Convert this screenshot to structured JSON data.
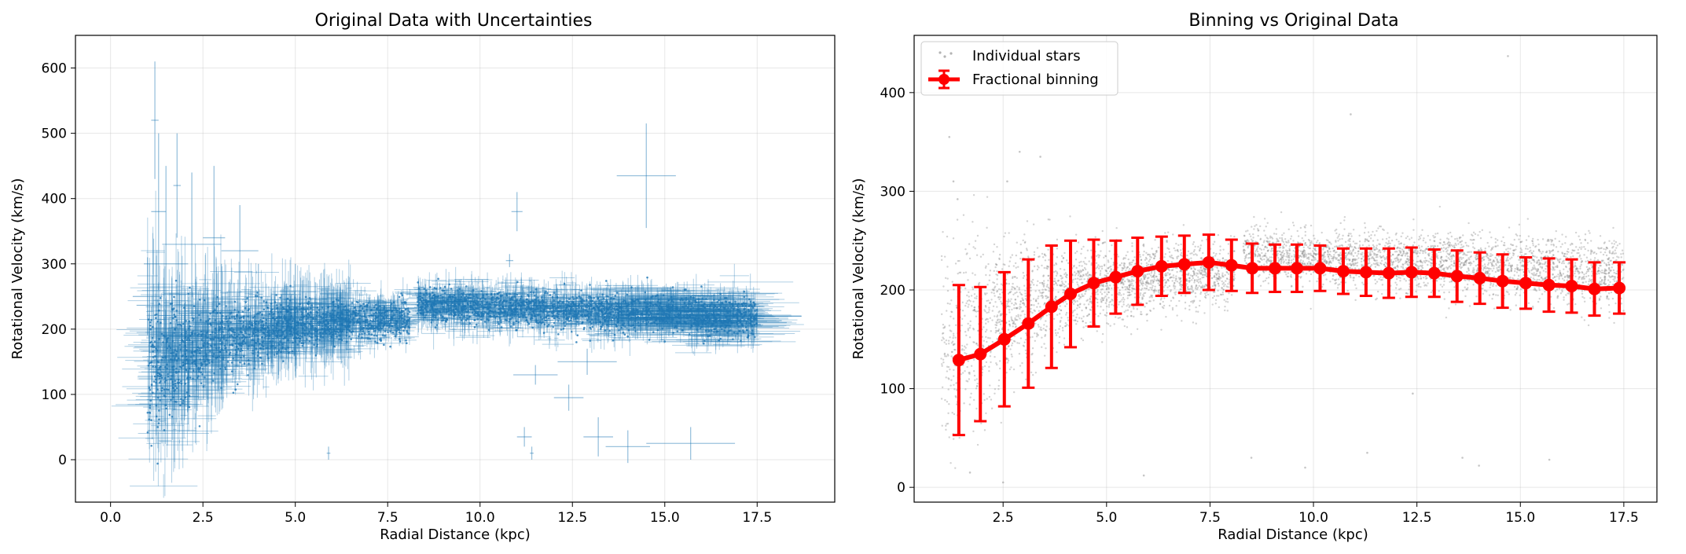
{
  "chart_data": [
    {
      "type": "scatter",
      "title": "Original Data with Uncertainties",
      "xlabel": "Radial Distance (kpc)",
      "ylabel": "Rotational Velocity (km/s)",
      "xlim": [
        -0.95,
        19.6
      ],
      "ylim": [
        -65,
        650
      ],
      "xticks": [
        0.0,
        2.5,
        5.0,
        7.5,
        10.0,
        12.5,
        15.0,
        17.5
      ],
      "xtick_labels": [
        "0.0",
        "2.5",
        "5.0",
        "7.5",
        "10.0",
        "12.5",
        "15.0",
        "17.5"
      ],
      "yticks": [
        0,
        100,
        200,
        300,
        400,
        500,
        600
      ],
      "ytick_labels": [
        "0",
        "100",
        "200",
        "300",
        "400",
        "500",
        "600"
      ],
      "grid": true,
      "color": "#1f77b4",
      "series": [
        {
          "points": [
            {
              "x": 1.2,
              "y": 520,
              "xerr": 0.1,
              "yerr": 90
            },
            {
              "x": 1.3,
              "y": 380,
              "xerr": 0.2,
              "yerr": 120
            },
            {
              "x": 1.5,
              "y": 300,
              "xerr": 0.6,
              "yerr": 150
            },
            {
              "x": 1.8,
              "y": 420,
              "xerr": 0.1,
              "yerr": 80
            },
            {
              "x": 2.2,
              "y": 330,
              "xerr": 0.8,
              "yerr": 110
            },
            {
              "x": 2.8,
              "y": 340,
              "xerr": 0.3,
              "yerr": 110
            },
            {
              "x": 3.5,
              "y": 320,
              "xerr": 0.5,
              "yerr": 70
            },
            {
              "x": 1.0,
              "y": 250,
              "xerr": 0.4,
              "yerr": 60
            },
            {
              "x": 2.0,
              "y": 150,
              "xerr": 1.0,
              "yerr": 90
            },
            {
              "x": 3.0,
              "y": 200,
              "xerr": 1.2,
              "yerr": 100
            },
            {
              "x": 4.0,
              "y": 220,
              "xerr": 1.4,
              "yerr": 80
            },
            {
              "x": 5.0,
              "y": 240,
              "xerr": 1.0,
              "yerr": 60
            },
            {
              "x": 11.0,
              "y": 380,
              "xerr": 0.15,
              "yerr": 30
            },
            {
              "x": 10.8,
              "y": 305,
              "xerr": 0.1,
              "yerr": 10
            },
            {
              "x": 14.5,
              "y": 435,
              "xerr": 0.8,
              "yerr": 80
            },
            {
              "x": 14.0,
              "y": 20,
              "xerr": 0.6,
              "yerr": 25
            },
            {
              "x": 15.7,
              "y": 25,
              "xerr": 1.2,
              "yerr": 25
            },
            {
              "x": 13.2,
              "y": 35,
              "xerr": 0.4,
              "yerr": 30
            },
            {
              "x": 12.4,
              "y": 95,
              "xerr": 0.4,
              "yerr": 20
            },
            {
              "x": 12.9,
              "y": 150,
              "xerr": 0.8,
              "yerr": 20
            },
            {
              "x": 11.5,
              "y": 130,
              "xerr": 0.6,
              "yerr": 15
            },
            {
              "x": 5.9,
              "y": 10,
              "xerr": 0.05,
              "yerr": 10
            },
            {
              "x": 11.2,
              "y": 35,
              "xerr": 0.2,
              "yerr": 15
            },
            {
              "x": 11.4,
              "y": 10,
              "xerr": 0.05,
              "yerr": 10
            },
            {
              "x": 16.5,
              "y": 210,
              "xerr": 1.8,
              "yerr": 20
            },
            {
              "x": 17.5,
              "y": 220,
              "xerr": 1.2,
              "yerr": 15
            }
          ]
        }
      ]
    },
    {
      "type": "scatter",
      "title": "Binning vs Original Data",
      "xlabel": "Radial Distance (kpc)",
      "ylabel": "Rotational Velocity (km/s)",
      "xlim": [
        0.35,
        18.3
      ],
      "ylim": [
        -15,
        458
      ],
      "xticks": [
        2.5,
        5.0,
        7.5,
        10.0,
        12.5,
        15.0,
        17.5
      ],
      "xtick_labels": [
        "2.5",
        "5.0",
        "7.5",
        "10.0",
        "12.5",
        "15.0",
        "17.5"
      ],
      "yticks": [
        0,
        100,
        200,
        300,
        400
      ],
      "ytick_labels": [
        "0",
        "100",
        "200",
        "300",
        "400"
      ],
      "grid": true,
      "legend": "upper-left",
      "series": [
        {
          "name": "Individual stars",
          "color": "#808080",
          "outliers": [
            {
              "x": 1.2,
              "y": 355
            },
            {
              "x": 1.3,
              "y": 310
            },
            {
              "x": 1.4,
              "y": 292
            },
            {
              "x": 2.6,
              "y": 310
            },
            {
              "x": 2.9,
              "y": 340
            },
            {
              "x": 3.4,
              "y": 335
            },
            {
              "x": 10.9,
              "y": 378
            },
            {
              "x": 14.7,
              "y": 437
            },
            {
              "x": 13.6,
              "y": 30
            },
            {
              "x": 15.7,
              "y": 28
            },
            {
              "x": 11.3,
              "y": 35
            },
            {
              "x": 5.9,
              "y": 12
            },
            {
              "x": 1.7,
              "y": 15
            },
            {
              "x": 2.5,
              "y": 5
            },
            {
              "x": 9.8,
              "y": 20
            },
            {
              "x": 8.5,
              "y": 30
            },
            {
              "x": 12.4,
              "y": 95
            },
            {
              "x": 14.0,
              "y": 22
            }
          ]
        },
        {
          "name": "Fractional binning",
          "color": "#ff0000",
          "x": [
            1.43,
            1.95,
            2.53,
            3.11,
            3.67,
            4.13,
            4.69,
            5.22,
            5.75,
            6.33,
            6.88,
            7.47,
            8.02,
            8.52,
            9.07,
            9.6,
            10.16,
            10.72,
            11.27,
            11.82,
            12.37,
            12.92,
            13.47,
            14.02,
            14.57,
            15.13,
            15.69,
            16.24,
            16.79,
            17.39
          ],
          "y": [
            129,
            135,
            150,
            166,
            183,
            196,
            207,
            213,
            219,
            224,
            226,
            228,
            225,
            222,
            222,
            222,
            222,
            219,
            218,
            217,
            218,
            217,
            214,
            212,
            209,
            207,
            205,
            204,
            201,
            202
          ],
          "yerr": [
            76,
            68,
            68,
            65,
            62,
            54,
            44,
            37,
            34,
            30,
            29,
            28,
            26,
            25,
            24,
            24,
            23,
            23,
            24,
            25,
            25,
            24,
            26,
            26,
            27,
            26,
            27,
            27,
            27,
            26
          ]
        }
      ]
    }
  ]
}
